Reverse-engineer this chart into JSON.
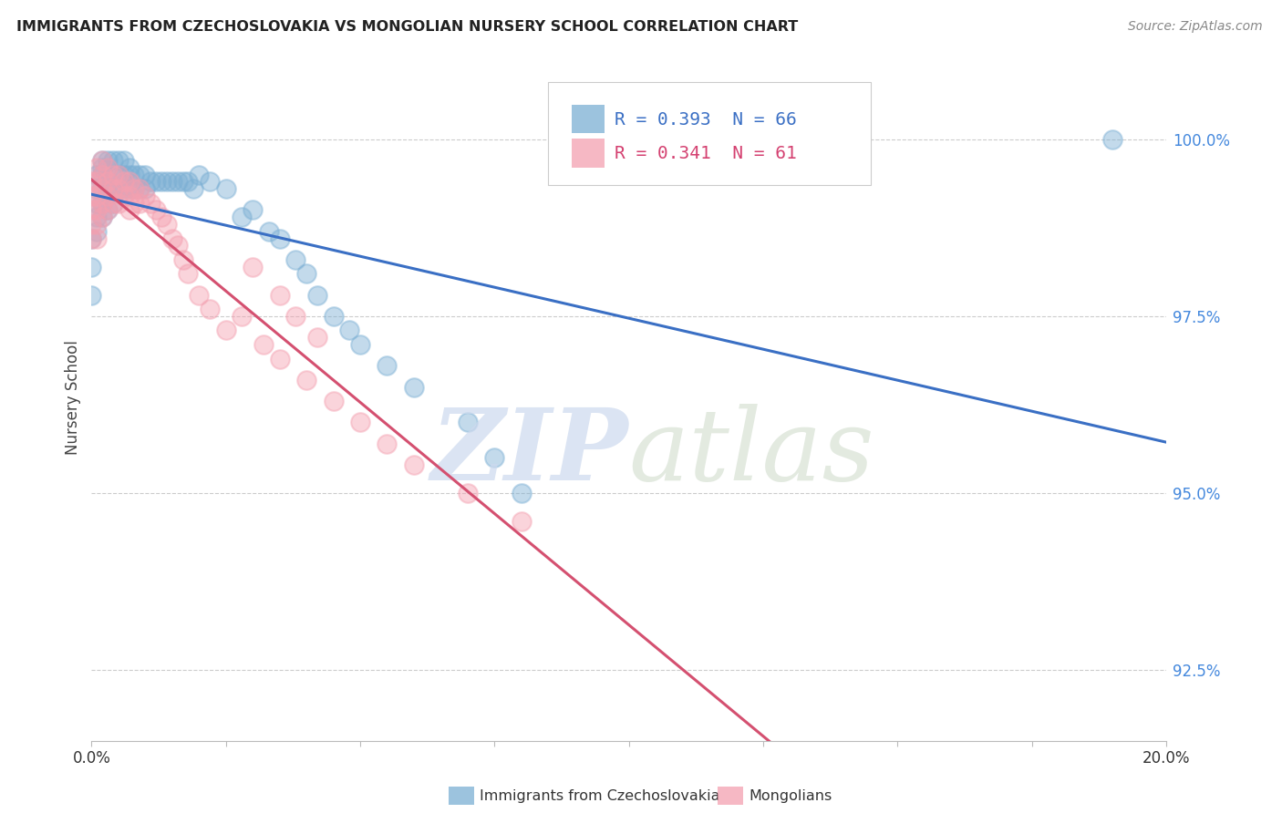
{
  "title": "IMMIGRANTS FROM CZECHOSLOVAKIA VS MONGOLIAN NURSERY SCHOOL CORRELATION CHART",
  "source": "Source: ZipAtlas.com",
  "ylabel": "Nursery School",
  "yticks": [
    92.5,
    95.0,
    97.5,
    100.0
  ],
  "ytick_labels": [
    "92.5%",
    "95.0%",
    "97.5%",
    "100.0%"
  ],
  "xlim": [
    0.0,
    0.2
  ],
  "ylim": [
    91.5,
    101.2
  ],
  "legend1_label": "Immigrants from Czechoslovakia",
  "legend2_label": "Mongolians",
  "R_blue": 0.393,
  "N_blue": 66,
  "R_pink": 0.341,
  "N_pink": 61,
  "blue_color": "#7BAFD4",
  "pink_color": "#F4A0B0",
  "trendline_blue": "#3A6FC4",
  "trendline_pink": "#D45070",
  "blue_x": [
    0.0,
    0.0,
    0.0,
    0.001,
    0.001,
    0.001,
    0.001,
    0.001,
    0.002,
    0.002,
    0.002,
    0.002,
    0.002,
    0.002,
    0.003,
    0.003,
    0.003,
    0.003,
    0.003,
    0.004,
    0.004,
    0.004,
    0.004,
    0.005,
    0.005,
    0.005,
    0.006,
    0.006,
    0.006,
    0.007,
    0.007,
    0.007,
    0.008,
    0.008,
    0.009,
    0.009,
    0.01,
    0.01,
    0.011,
    0.012,
    0.013,
    0.014,
    0.015,
    0.016,
    0.017,
    0.018,
    0.019,
    0.02,
    0.022,
    0.025,
    0.028,
    0.03,
    0.033,
    0.035,
    0.038,
    0.04,
    0.042,
    0.045,
    0.048,
    0.05,
    0.055,
    0.06,
    0.07,
    0.075,
    0.08,
    0.19
  ],
  "blue_y": [
    98.6,
    98.2,
    97.8,
    99.5,
    99.3,
    99.1,
    98.9,
    98.7,
    99.7,
    99.6,
    99.5,
    99.3,
    99.1,
    98.9,
    99.7,
    99.6,
    99.4,
    99.2,
    99.0,
    99.7,
    99.5,
    99.3,
    99.1,
    99.7,
    99.5,
    99.3,
    99.7,
    99.5,
    99.3,
    99.6,
    99.5,
    99.3,
    99.5,
    99.3,
    99.5,
    99.3,
    99.5,
    99.3,
    99.4,
    99.4,
    99.4,
    99.4,
    99.4,
    99.4,
    99.4,
    99.4,
    99.3,
    99.5,
    99.4,
    99.3,
    98.9,
    99.0,
    98.7,
    98.6,
    98.3,
    98.1,
    97.8,
    97.5,
    97.3,
    97.1,
    96.8,
    96.5,
    96.0,
    95.5,
    95.0,
    100.0
  ],
  "pink_x": [
    0.0,
    0.0,
    0.0,
    0.0,
    0.0,
    0.001,
    0.001,
    0.001,
    0.001,
    0.001,
    0.001,
    0.002,
    0.002,
    0.002,
    0.002,
    0.002,
    0.003,
    0.003,
    0.003,
    0.003,
    0.004,
    0.004,
    0.004,
    0.005,
    0.005,
    0.005,
    0.006,
    0.006,
    0.007,
    0.007,
    0.007,
    0.008,
    0.008,
    0.009,
    0.009,
    0.01,
    0.011,
    0.012,
    0.013,
    0.014,
    0.015,
    0.016,
    0.017,
    0.018,
    0.02,
    0.022,
    0.025,
    0.028,
    0.032,
    0.035,
    0.04,
    0.045,
    0.05,
    0.055,
    0.06,
    0.07,
    0.08,
    0.03,
    0.035,
    0.038,
    0.042
  ],
  "pink_y": [
    99.4,
    99.2,
    99.0,
    98.8,
    98.6,
    99.6,
    99.4,
    99.2,
    99.0,
    98.8,
    98.6,
    99.7,
    99.5,
    99.3,
    99.1,
    98.9,
    99.6,
    99.4,
    99.2,
    99.0,
    99.5,
    99.3,
    99.1,
    99.5,
    99.3,
    99.1,
    99.4,
    99.2,
    99.4,
    99.2,
    99.0,
    99.3,
    99.1,
    99.3,
    99.1,
    99.2,
    99.1,
    99.0,
    98.9,
    98.8,
    98.6,
    98.5,
    98.3,
    98.1,
    97.8,
    97.6,
    97.3,
    97.5,
    97.1,
    96.9,
    96.6,
    96.3,
    96.0,
    95.7,
    95.4,
    95.0,
    94.6,
    98.2,
    97.8,
    97.5,
    97.2
  ]
}
